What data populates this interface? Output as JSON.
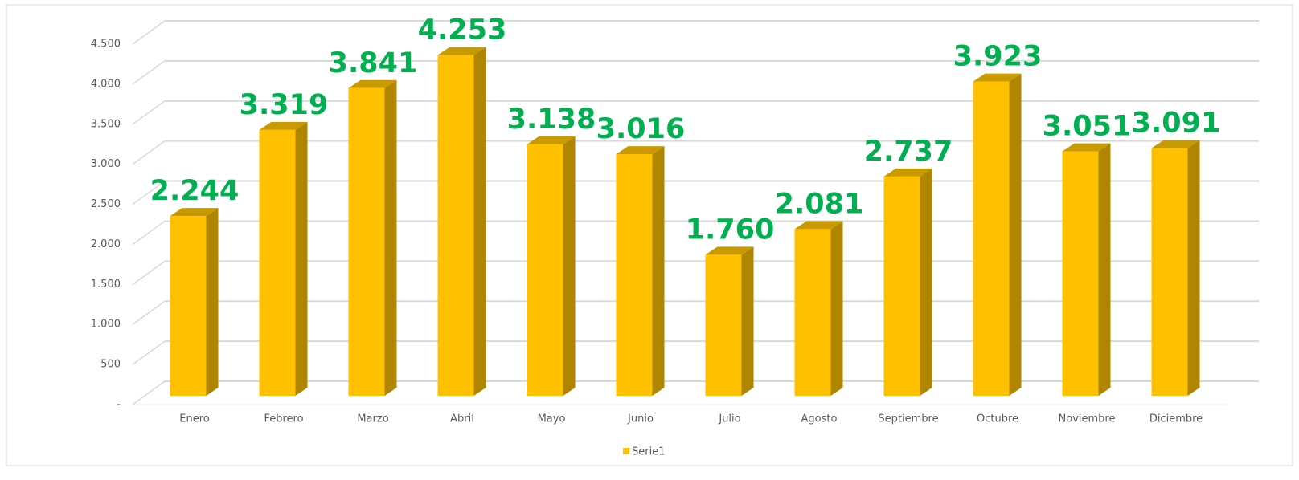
{
  "chart_data": {
    "type": "bar3d",
    "categories": [
      "Enero",
      "Febrero",
      "Marzo",
      "Abril",
      "Mayo",
      "Junio",
      "Julio",
      "Agosto",
      "Septiembre",
      "Octubre",
      "Noviembre",
      "Diciembre"
    ],
    "series": [
      {
        "name": "Serie1",
        "color": "#ffc000",
        "values": [
          2244,
          3319,
          3841,
          4253,
          3138,
          3016,
          1760,
          2081,
          2737,
          3923,
          3051,
          3091
        ],
        "value_labels": [
          "2.244",
          "3.319",
          "3.841",
          "4.253",
          "3.138",
          "3.016",
          "1.760",
          "2.081",
          "2.737",
          "3.923",
          "3.051",
          "3.091"
        ]
      }
    ],
    "ylim": [
      0,
      4500
    ],
    "yticks": [
      {
        "value": 0,
        "label": "-"
      },
      500,
      {
        "value": 1000,
        "label": "1.000"
      },
      {
        "value": 1500,
        "label": "1.500"
      },
      {
        "value": 2000,
        "label": "2.000"
      },
      {
        "value": 2500,
        "label": "2.500"
      },
      {
        "value": 3000,
        "label": "3.000"
      },
      {
        "value": 3500,
        "label": "3.500"
      },
      {
        "value": 4000,
        "label": "4.000"
      },
      {
        "value": 4500,
        "label": "4.500"
      }
    ],
    "grid": true,
    "legend": "bottom"
  }
}
